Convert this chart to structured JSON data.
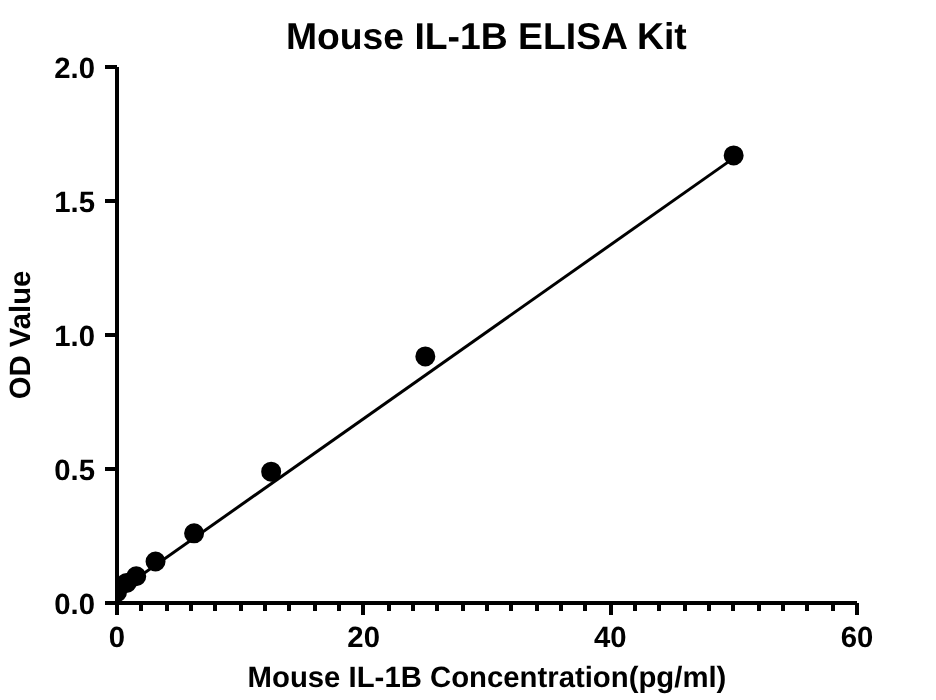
{
  "chart_data": {
    "type": "scatter",
    "title": "Mouse IL-1B ELISA Kit",
    "xlabel": "Mouse IL-1B Concentration(pg/ml)",
    "ylabel": "OD Value",
    "xlim": [
      0,
      60
    ],
    "ylim": [
      0,
      2.0
    ],
    "xticks": [
      0,
      20,
      40,
      60
    ],
    "yticks": [
      {
        "value": 0,
        "label": "0.0"
      },
      {
        "value": 0.5,
        "label": "0.5"
      },
      {
        "value": 1.0,
        "label": "1.0"
      },
      {
        "value": 1.5,
        "label": "1.5"
      },
      {
        "value": 2.0,
        "label": "2.0"
      }
    ],
    "grid": false,
    "marker": "circle",
    "series": [
      {
        "type": "scatter",
        "color": "#000000",
        "x": [
          0,
          0.78,
          1.56,
          3.125,
          6.25,
          12.5,
          25,
          50
        ],
        "values": [
          0.04,
          0.075,
          0.1,
          0.155,
          0.26,
          0.49,
          0.92,
          1.67
        ]
      },
      {
        "type": "line",
        "color": "#000000",
        "x": [
          0,
          50
        ],
        "values": [
          0.04,
          1.66
        ],
        "marker": "none",
        "line_style": "solid"
      }
    ]
  }
}
